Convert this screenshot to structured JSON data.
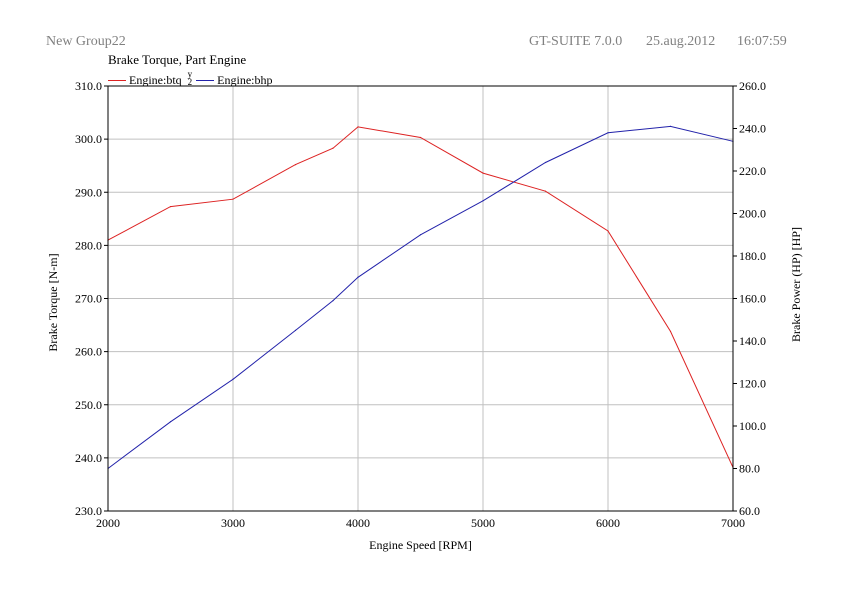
{
  "header": {
    "group": "New Group22",
    "app": "GT-SUITE 7.0.0",
    "date": "25.aug.2012",
    "time": "16:07:59"
  },
  "chart_data": {
    "type": "line",
    "title": "Brake Torque, Part Engine",
    "xlabel": "Engine Speed [RPM]",
    "ylabel": "Brake Torque [N-m]",
    "y2label": "Brake Power (HP) [HP]",
    "xlim": [
      2000,
      7000
    ],
    "ylim": [
      230,
      310
    ],
    "y2lim": [
      60,
      260
    ],
    "xticks": [
      "2000",
      "3000",
      "4000",
      "5000",
      "6000",
      "7000"
    ],
    "yticks": [
      "230.0",
      "240.0",
      "250.0",
      "260.0",
      "270.0",
      "280.0",
      "290.0",
      "300.0",
      "310.0"
    ],
    "y2ticks": [
      "60.0",
      "80.0",
      "100.0",
      "120.0",
      "140.0",
      "160.0",
      "180.0",
      "200.0",
      "220.0",
      "240.0",
      "260.0"
    ],
    "grid": true,
    "legend_position": "top-left",
    "legend_separator": "y\n2",
    "series": [
      {
        "name": "Engine:btq",
        "axis": "left",
        "color": "#dd2222",
        "x": [
          2000,
          2500,
          3000,
          3500,
          3800,
          4000,
          4500,
          5000,
          5500,
          6000,
          6500,
          7000
        ],
        "y": [
          281.0,
          287.3,
          288.7,
          295.2,
          298.3,
          302.3,
          300.3,
          293.6,
          290.2,
          282.7,
          263.8,
          238.2
        ]
      },
      {
        "name": "Engine:bhp",
        "axis": "right",
        "color": "#2222aa",
        "x": [
          2000,
          2500,
          3000,
          3500,
          3800,
          4000,
          4500,
          5000,
          5500,
          6000,
          6500,
          7000
        ],
        "y": [
          80.0,
          102.0,
          122.0,
          145.0,
          159.0,
          170.0,
          190.0,
          206.0,
          224.0,
          238.0,
          241.0,
          234.0
        ]
      }
    ]
  }
}
